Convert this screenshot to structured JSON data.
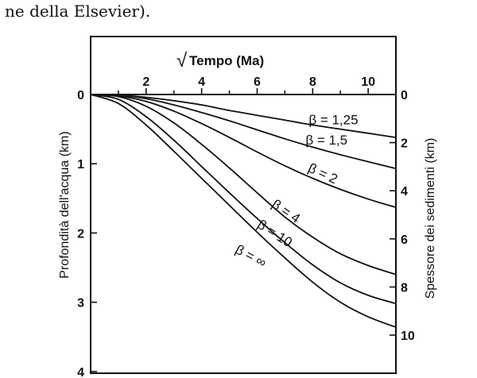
{
  "caption": "ne della Elsevier).",
  "chart_data": {
    "type": "line",
    "top_axis": {
      "label_prefix": "√",
      "label": "Tempo (Ma)",
      "ticks": [
        "2",
        "4",
        "6",
        "8",
        "10"
      ],
      "range": [
        0,
        11
      ]
    },
    "left_axis": {
      "label": "Profondità dell'acqua (km)",
      "ticks": [
        "0",
        "1",
        "2",
        "3",
        "4"
      ],
      "range": [
        0,
        4
      ]
    },
    "right_axis": {
      "label": "Spessore dei sedimenti (km)",
      "ticks": [
        "0",
        "2",
        "4",
        "6",
        "8",
        "10"
      ],
      "range": [
        0,
        12
      ]
    },
    "series": [
      {
        "name": "β = 1,25",
        "x": [
          0,
          1,
          2,
          3,
          4,
          5,
          6,
          7,
          8,
          9,
          10,
          11
        ],
        "y": [
          0,
          0.01,
          0.04,
          0.09,
          0.15,
          0.23,
          0.3,
          0.37,
          0.44,
          0.5,
          0.56,
          0.62
        ]
      },
      {
        "name": "β = 1,5",
        "x": [
          0,
          1,
          2,
          3,
          4,
          5,
          6,
          7,
          8,
          9,
          10,
          11
        ],
        "y": [
          0,
          0.01,
          0.06,
          0.15,
          0.26,
          0.38,
          0.51,
          0.64,
          0.76,
          0.87,
          0.97,
          1.07
        ]
      },
      {
        "name": "β = 2",
        "x": [
          0,
          1,
          2,
          3,
          4,
          5,
          6,
          7,
          8,
          9,
          10,
          11
        ],
        "y": [
          0,
          0.02,
          0.1,
          0.24,
          0.42,
          0.62,
          0.83,
          1.03,
          1.21,
          1.37,
          1.51,
          1.63
        ]
      },
      {
        "name": "β = 4",
        "x": [
          0,
          1,
          2,
          3,
          4,
          5,
          6,
          7,
          8,
          9,
          10,
          11
        ],
        "y": [
          0,
          0.03,
          0.17,
          0.41,
          0.72,
          1.06,
          1.42,
          1.77,
          2.06,
          2.3,
          2.47,
          2.6
        ]
      },
      {
        "name": "β = 10",
        "x": [
          0,
          1,
          2,
          3,
          4,
          5,
          6,
          7,
          8,
          9,
          10,
          11
        ],
        "y": [
          0,
          0.07,
          0.32,
          0.66,
          1.04,
          1.42,
          1.79,
          2.14,
          2.46,
          2.72,
          2.9,
          3.02
        ]
      },
      {
        "name": "β = ∞",
        "x": [
          0,
          1,
          2,
          3,
          4,
          5,
          6,
          7,
          8,
          9,
          10,
          11
        ],
        "y": [
          0,
          0.13,
          0.44,
          0.82,
          1.21,
          1.6,
          1.99,
          2.36,
          2.71,
          3.0,
          3.21,
          3.36
        ]
      }
    ],
    "curve_labels": [
      {
        "text": "β = 1,25",
        "x": 8.75,
        "y": 0.43,
        "rotate": 0
      },
      {
        "text": "β = 1,5",
        "x": 8.5,
        "y": 0.72,
        "rotate": 0
      },
      {
        "text": "β = 2",
        "x": 8.3,
        "y": 1.2,
        "rotate": 25
      },
      {
        "text": "β = 4",
        "x": 6.95,
        "y": 1.74,
        "rotate": 34
      },
      {
        "text": "β = 10",
        "x": 6.55,
        "y": 2.06,
        "rotate": 33
      },
      {
        "text": "β = ∞",
        "x": 5.7,
        "y": 2.39,
        "rotate": 28
      }
    ],
    "grid": false,
    "legend": "none",
    "line_color": "#111111"
  }
}
